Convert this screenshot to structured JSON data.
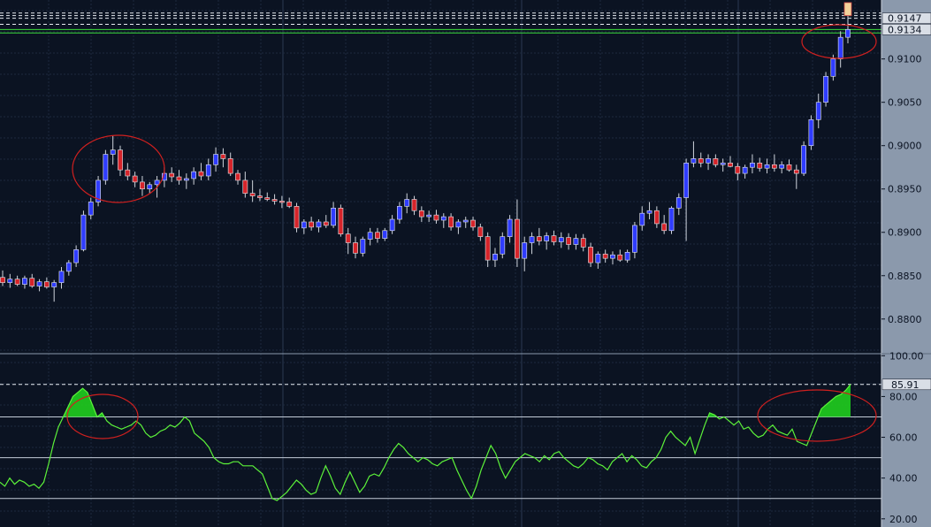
{
  "chart_data": [
    {
      "type": "candlestick",
      "ylim": [
        0.876,
        0.9168
      ],
      "y_ticks": [
        "0.9100",
        "0.9050",
        "0.9000",
        "0.8950",
        "0.8900",
        "0.8850",
        "0.8800"
      ],
      "price_tags": [
        "0.9147",
        "0.9134"
      ],
      "grid": true,
      "candles": [
        [
          0.8848,
          0.8856,
          0.8838,
          0.8842
        ],
        [
          0.8842,
          0.8852,
          0.8836,
          0.8846
        ],
        [
          0.8846,
          0.885,
          0.8838,
          0.884
        ],
        [
          0.884,
          0.885,
          0.8835,
          0.8847
        ],
        [
          0.8847,
          0.8852,
          0.8836,
          0.8838
        ],
        [
          0.8838,
          0.8846,
          0.8832,
          0.8843
        ],
        [
          0.8843,
          0.8848,
          0.8835,
          0.8837
        ],
        [
          0.8837,
          0.8845,
          0.882,
          0.8842
        ],
        [
          0.8842,
          0.886,
          0.8835,
          0.8855
        ],
        [
          0.8855,
          0.8868,
          0.885,
          0.8865
        ],
        [
          0.8865,
          0.8885,
          0.886,
          0.888
        ],
        [
          0.888,
          0.8925,
          0.8878,
          0.892
        ],
        [
          0.892,
          0.894,
          0.8915,
          0.8935
        ],
        [
          0.8935,
          0.8965,
          0.893,
          0.896
        ],
        [
          0.896,
          0.8995,
          0.8955,
          0.899
        ],
        [
          0.899,
          0.9012,
          0.8978,
          0.8995
        ],
        [
          0.8995,
          0.9,
          0.8965,
          0.8972
        ],
        [
          0.8972,
          0.898,
          0.896,
          0.8965
        ],
        [
          0.8965,
          0.897,
          0.8952,
          0.8958
        ],
        [
          0.8958,
          0.8965,
          0.8942,
          0.895
        ],
        [
          0.895,
          0.8958,
          0.8945,
          0.8955
        ],
        [
          0.8955,
          0.8965,
          0.894,
          0.896
        ],
        [
          0.896,
          0.8975,
          0.8952,
          0.8968
        ],
        [
          0.8968,
          0.8975,
          0.8958,
          0.8964
        ],
        [
          0.8964,
          0.8972,
          0.8955,
          0.896
        ],
        [
          0.896,
          0.8968,
          0.895,
          0.8962
        ],
        [
          0.8962,
          0.8975,
          0.8955,
          0.897
        ],
        [
          0.897,
          0.898,
          0.896,
          0.8965
        ],
        [
          0.8965,
          0.8985,
          0.896,
          0.8978
        ],
        [
          0.8978,
          0.8998,
          0.897,
          0.899
        ],
        [
          0.899,
          0.8997,
          0.8975,
          0.8985
        ],
        [
          0.8985,
          0.8992,
          0.8965,
          0.8968
        ],
        [
          0.8968,
          0.8972,
          0.8955,
          0.896
        ],
        [
          0.896,
          0.897,
          0.894,
          0.8945
        ],
        [
          0.8945,
          0.896,
          0.8935,
          0.8942
        ],
        [
          0.8942,
          0.895,
          0.8936,
          0.894
        ],
        [
          0.894,
          0.8946,
          0.8936,
          0.8938
        ],
        [
          0.8938,
          0.8944,
          0.8932,
          0.8936
        ],
        [
          0.8936,
          0.8942,
          0.8928,
          0.8935
        ],
        [
          0.8935,
          0.894,
          0.8928,
          0.893
        ],
        [
          0.893,
          0.8934,
          0.89,
          0.8905
        ],
        [
          0.8905,
          0.8915,
          0.8898,
          0.8912
        ],
        [
          0.8912,
          0.8918,
          0.8902,
          0.8906
        ],
        [
          0.8906,
          0.8915,
          0.89,
          0.8912
        ],
        [
          0.8912,
          0.892,
          0.8905,
          0.8908
        ],
        [
          0.8908,
          0.8935,
          0.8905,
          0.8928
        ],
        [
          0.8928,
          0.8932,
          0.8895,
          0.8898
        ],
        [
          0.8898,
          0.8905,
          0.8875,
          0.8888
        ],
        [
          0.8888,
          0.8895,
          0.887,
          0.8876
        ],
        [
          0.8876,
          0.8895,
          0.8872,
          0.8892
        ],
        [
          0.8892,
          0.8905,
          0.8885,
          0.89
        ],
        [
          0.89,
          0.8905,
          0.8888,
          0.8893
        ],
        [
          0.8893,
          0.8905,
          0.889,
          0.8902
        ],
        [
          0.8902,
          0.892,
          0.8898,
          0.8915
        ],
        [
          0.8915,
          0.8935,
          0.891,
          0.893
        ],
        [
          0.893,
          0.8945,
          0.8922,
          0.8938
        ],
        [
          0.8938,
          0.8942,
          0.892,
          0.8925
        ],
        [
          0.8925,
          0.893,
          0.8912,
          0.8918
        ],
        [
          0.8918,
          0.8925,
          0.8912,
          0.892
        ],
        [
          0.892,
          0.8926,
          0.891,
          0.8914
        ],
        [
          0.8914,
          0.8922,
          0.8905,
          0.8918
        ],
        [
          0.8918,
          0.8922,
          0.8902,
          0.8906
        ],
        [
          0.8906,
          0.8915,
          0.8898,
          0.8912
        ],
        [
          0.8912,
          0.8918,
          0.8905,
          0.8914
        ],
        [
          0.8914,
          0.8918,
          0.8902,
          0.8906
        ],
        [
          0.8906,
          0.891,
          0.889,
          0.8895
        ],
        [
          0.8895,
          0.89,
          0.886,
          0.8868
        ],
        [
          0.8868,
          0.8882,
          0.886,
          0.8875
        ],
        [
          0.8875,
          0.89,
          0.887,
          0.8895
        ],
        [
          0.8895,
          0.892,
          0.8888,
          0.8915
        ],
        [
          0.8915,
          0.8938,
          0.886,
          0.887
        ],
        [
          0.887,
          0.8895,
          0.8855,
          0.8888
        ],
        [
          0.8888,
          0.89,
          0.8875,
          0.8895
        ],
        [
          0.8895,
          0.8905,
          0.8885,
          0.889
        ],
        [
          0.889,
          0.89,
          0.888,
          0.8896
        ],
        [
          0.8896,
          0.8902,
          0.8885,
          0.8889
        ],
        [
          0.8889,
          0.89,
          0.8882,
          0.8894
        ],
        [
          0.8894,
          0.8899,
          0.888,
          0.8886
        ],
        [
          0.8886,
          0.8898,
          0.888,
          0.8893
        ],
        [
          0.8893,
          0.8898,
          0.8878,
          0.8883
        ],
        [
          0.8883,
          0.8888,
          0.886,
          0.8865
        ],
        [
          0.8865,
          0.8878,
          0.8858,
          0.8875
        ],
        [
          0.8875,
          0.888,
          0.8865,
          0.887
        ],
        [
          0.887,
          0.8878,
          0.8863,
          0.8874
        ],
        [
          0.8874,
          0.888,
          0.8866,
          0.8868
        ],
        [
          0.8868,
          0.888,
          0.8865,
          0.8877
        ],
        [
          0.8877,
          0.8912,
          0.887,
          0.8908
        ],
        [
          0.8908,
          0.893,
          0.8902,
          0.8922
        ],
        [
          0.8922,
          0.8935,
          0.8915,
          0.8925
        ],
        [
          0.8925,
          0.893,
          0.8905,
          0.891
        ],
        [
          0.891,
          0.892,
          0.8898,
          0.8902
        ],
        [
          0.8902,
          0.893,
          0.8898,
          0.8928
        ],
        [
          0.8928,
          0.8945,
          0.892,
          0.894
        ],
        [
          0.894,
          0.8985,
          0.889,
          0.898
        ],
        [
          0.898,
          0.9005,
          0.8975,
          0.8985
        ],
        [
          0.8985,
          0.8992,
          0.8975,
          0.898
        ],
        [
          0.898,
          0.899,
          0.8972,
          0.8985
        ],
        [
          0.8985,
          0.899,
          0.8975,
          0.8978
        ],
        [
          0.8978,
          0.8985,
          0.897,
          0.898
        ],
        [
          0.898,
          0.8988,
          0.8975,
          0.8976
        ],
        [
          0.8976,
          0.898,
          0.896,
          0.8968
        ],
        [
          0.8968,
          0.8978,
          0.8962,
          0.8975
        ],
        [
          0.8975,
          0.899,
          0.8968,
          0.898
        ],
        [
          0.898,
          0.8986,
          0.897,
          0.8974
        ],
        [
          0.8974,
          0.8985,
          0.8968,
          0.8978
        ],
        [
          0.8978,
          0.899,
          0.897,
          0.8974
        ],
        [
          0.8974,
          0.8982,
          0.8968,
          0.8978
        ],
        [
          0.8978,
          0.8984,
          0.897,
          0.8972
        ],
        [
          0.8972,
          0.8978,
          0.895,
          0.8968
        ],
        [
          0.8968,
          0.9005,
          0.8965,
          0.9
        ],
        [
          0.9,
          0.9035,
          0.8995,
          0.903
        ],
        [
          0.903,
          0.906,
          0.902,
          0.905
        ],
        [
          0.905,
          0.9085,
          0.9045,
          0.908
        ],
        [
          0.908,
          0.9105,
          0.9075,
          0.91
        ],
        [
          0.91,
          0.9132,
          0.909,
          0.9125
        ],
        [
          0.9125,
          0.915,
          0.9118,
          0.9134
        ]
      ]
    },
    {
      "type": "line",
      "ylim": [
        16,
        101
      ],
      "y_ticks": [
        "100.00",
        "80.00",
        "60.00",
        "40.00",
        "20.00"
      ],
      "levels": [
        70,
        50,
        30
      ],
      "current_tag": "85.91",
      "fill_above": 70,
      "values": [
        38,
        36,
        40,
        37,
        39,
        38,
        36,
        37,
        35,
        38,
        47,
        57,
        65,
        70,
        75,
        80,
        82,
        84,
        82,
        76,
        70,
        72,
        68,
        66,
        65,
        64,
        65,
        66,
        68,
        66,
        62,
        60,
        61,
        63,
        64,
        66,
        65,
        67,
        70,
        68,
        62,
        60,
        58,
        55,
        50,
        48,
        47,
        47,
        48,
        48,
        46,
        46,
        46,
        44,
        42,
        36,
        30,
        29,
        31,
        33,
        36,
        39,
        37,
        34,
        32,
        33,
        40,
        46,
        41,
        35,
        32,
        38,
        43,
        38,
        33,
        36,
        41,
        42,
        41,
        45,
        50,
        54,
        57,
        55,
        52,
        50,
        48,
        50,
        49,
        47,
        46,
        48,
        49,
        50,
        44,
        39,
        34,
        30,
        36,
        44,
        50,
        56,
        52,
        45,
        40,
        44,
        48,
        50,
        52,
        51,
        50,
        48,
        51,
        49,
        52,
        53,
        50,
        48,
        46,
        45,
        47,
        50,
        49,
        47,
        46,
        44,
        48,
        50,
        52,
        48,
        51,
        49,
        46,
        45,
        48,
        50,
        54,
        60,
        63,
        60,
        58,
        56,
        60,
        52,
        59,
        66,
        72,
        71,
        69,
        70,
        68,
        66,
        68,
        64,
        65,
        62,
        60,
        61,
        64,
        66,
        63,
        62,
        61,
        64,
        58,
        57,
        56,
        62,
        68,
        74,
        76,
        78,
        80,
        81,
        83,
        85.91
      ]
    }
  ]
}
